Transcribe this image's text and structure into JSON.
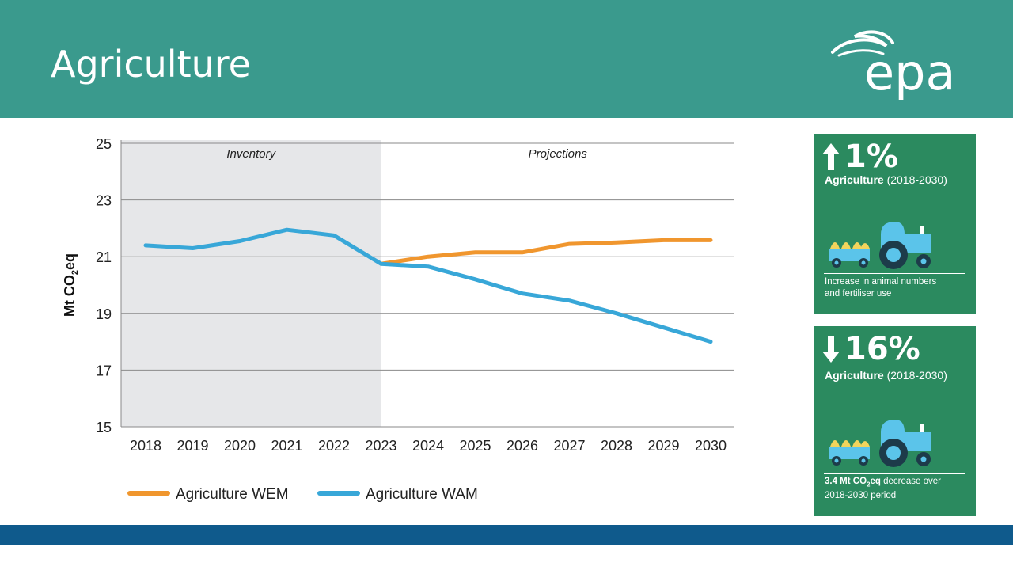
{
  "slide": {
    "title": "Agriculture",
    "logo_text": "epa"
  },
  "chart_data": {
    "type": "line",
    "ylabel_main": "Mt CO",
    "ylabel_sub": "2",
    "ylabel_tail": "eq",
    "ylim": [
      15,
      25
    ],
    "yticks": [
      15,
      17,
      19,
      21,
      23,
      25
    ],
    "x": [
      "2018",
      "2019",
      "2020",
      "2021",
      "2022",
      "2023",
      "2024",
      "2025",
      "2026",
      "2027",
      "2028",
      "2029",
      "2030"
    ],
    "regions": [
      {
        "label": "Inventory",
        "from": "2018",
        "to": "2023",
        "shaded": true
      },
      {
        "label": "Projections",
        "from": "2023",
        "to": "2030",
        "shaded": false
      }
    ],
    "series": [
      {
        "name": "Agriculture WEM",
        "color": "#f0962e",
        "values": [
          null,
          null,
          null,
          null,
          null,
          20.75,
          21.0,
          21.15,
          21.15,
          21.45,
          21.5,
          21.58,
          21.58
        ]
      },
      {
        "name": "Agriculture WAM",
        "color": "#38a7d8",
        "values": [
          21.4,
          21.3,
          21.55,
          21.95,
          21.75,
          20.75,
          20.65,
          20.2,
          19.7,
          19.45,
          19.0,
          18.5,
          18.0
        ]
      }
    ],
    "grid": true,
    "legend": "bottom"
  },
  "panels": [
    {
      "direction": "up",
      "percent": "1%",
      "label_bold": "Agriculture",
      "label_rest": " (2018-2030)",
      "note_line1": "Increase in animal numbers",
      "note_line2": "and fertiliser use"
    },
    {
      "direction": "down",
      "percent": "16%",
      "label_bold": "Agriculture",
      "label_rest": " (2018-2030)",
      "note_bold": "3.4 Mt CO",
      "note_sub": "2",
      "note_bold_tail": "eq",
      "note_rest": " decrease over",
      "note_line2": "2018-2030 period"
    }
  ],
  "colors": {
    "header": "#3a9a8d",
    "panel": "#2b8a5f",
    "footer": "#0f5a8c",
    "tractor": "#5bc4ea",
    "hay": "#f2d45c"
  }
}
